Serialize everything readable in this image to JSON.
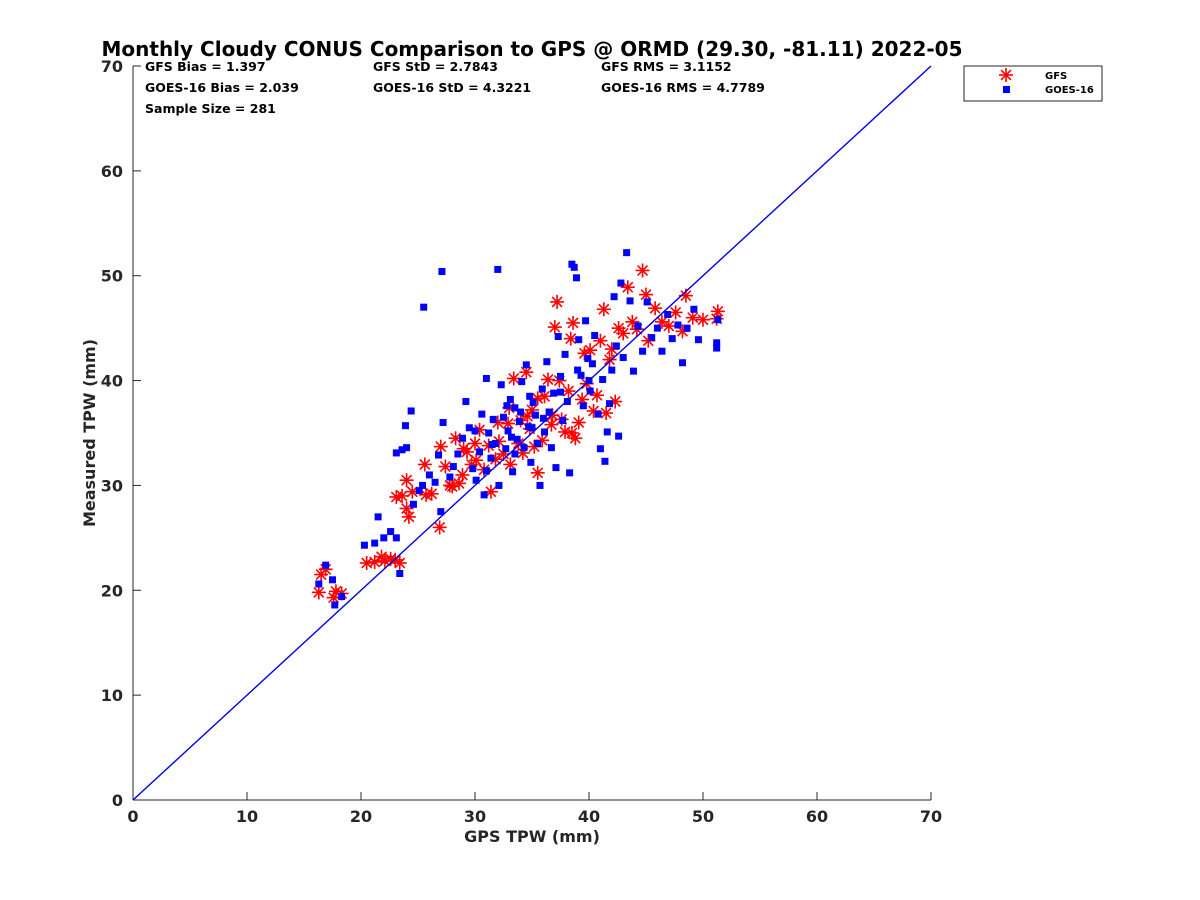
{
  "chart_data": {
    "type": "scatter",
    "title": "Monthly Cloudy CONUS Comparison to GPS @ ORMD (29.30, -81.11) 2022-05",
    "xlabel": "GPS TPW (mm)",
    "ylabel": "Measured TPW (mm)",
    "xlim": [
      0,
      70
    ],
    "ylim": [
      0,
      70
    ],
    "xticks": [
      "0",
      "10",
      "20",
      "30",
      "40",
      "50",
      "60",
      "70"
    ],
    "yticks": [
      "0",
      "10",
      "20",
      "30",
      "40",
      "50",
      "60",
      "70"
    ],
    "grid": false,
    "legend_position": "top-right",
    "stats": {
      "gfs_bias": "GFS Bias = 1.397",
      "goes_bias": "GOES-16 Bias = 2.039",
      "sample_size": "Sample Size = 281",
      "gfs_std": "GFS StD = 2.7843",
      "goes_std": "GOES-16 StD = 4.3221",
      "gfs_rms": "GFS RMS = 3.1152",
      "goes_rms": "GOES-16 RMS = 4.7789"
    },
    "reference_line": {
      "x": [
        0,
        70
      ],
      "y": [
        0,
        70
      ],
      "color": "#0000e6"
    },
    "series": [
      {
        "name": "GFS",
        "marker": "asterisk",
        "color": "#ff0000",
        "points": [
          [
            16.3,
            19.8
          ],
          [
            16.5,
            21.5
          ],
          [
            16.9,
            22.0
          ],
          [
            17.8,
            19.9
          ],
          [
            18.3,
            19.7
          ],
          [
            17.6,
            19.3
          ],
          [
            20.5,
            22.6
          ],
          [
            21.2,
            22.7
          ],
          [
            21.8,
            23.2
          ],
          [
            22.1,
            22.8
          ],
          [
            22.6,
            23.0
          ],
          [
            23.0,
            22.9
          ],
          [
            23.4,
            22.6
          ],
          [
            23.1,
            28.9
          ],
          [
            23.6,
            29.0
          ],
          [
            24.0,
            30.5
          ],
          [
            24.0,
            27.8
          ],
          [
            24.2,
            27.0
          ],
          [
            24.5,
            29.4
          ],
          [
            25.7,
            29.1
          ],
          [
            26.2,
            29.2
          ],
          [
            25.6,
            32.0
          ],
          [
            26.9,
            26.0
          ],
          [
            27.0,
            33.7
          ],
          [
            27.4,
            31.8
          ],
          [
            27.8,
            30.0
          ],
          [
            28.0,
            29.9
          ],
          [
            28.3,
            34.5
          ],
          [
            28.6,
            30.2
          ],
          [
            28.9,
            31.0
          ],
          [
            29.3,
            33.2
          ],
          [
            29.7,
            32.0
          ],
          [
            30.1,
            32.4
          ],
          [
            30.4,
            35.3
          ],
          [
            30.8,
            31.5
          ],
          [
            31.2,
            33.8
          ],
          [
            31.4,
            29.4
          ],
          [
            31.8,
            32.5
          ],
          [
            32.1,
            34.2
          ],
          [
            32.5,
            33.0
          ],
          [
            32.9,
            35.9
          ],
          [
            33.1,
            32.0
          ],
          [
            33.4,
            40.2
          ],
          [
            33.8,
            34.0
          ],
          [
            34.0,
            36.2
          ],
          [
            34.2,
            33.1
          ],
          [
            34.5,
            40.8
          ],
          [
            34.8,
            35.4
          ],
          [
            35.0,
            37.2
          ],
          [
            35.2,
            33.7
          ],
          [
            35.5,
            31.2
          ],
          [
            35.9,
            34.3
          ],
          [
            36.1,
            38.5
          ],
          [
            36.4,
            40.1
          ],
          [
            36.7,
            35.8
          ],
          [
            37.0,
            45.1
          ],
          [
            37.2,
            47.5
          ],
          [
            37.4,
            40.0
          ],
          [
            37.6,
            36.3
          ],
          [
            37.9,
            35.1
          ],
          [
            38.2,
            39.0
          ],
          [
            38.4,
            44.0
          ],
          [
            38.6,
            45.5
          ],
          [
            38.8,
            34.5
          ],
          [
            39.1,
            36.0
          ],
          [
            39.4,
            38.2
          ],
          [
            39.8,
            39.7
          ],
          [
            40.1,
            42.9
          ],
          [
            40.4,
            37.1
          ],
          [
            40.7,
            38.6
          ],
          [
            41.0,
            43.8
          ],
          [
            41.3,
            46.8
          ],
          [
            41.5,
            36.9
          ],
          [
            41.8,
            42.0
          ],
          [
            42.0,
            43.0
          ],
          [
            42.3,
            38.0
          ],
          [
            42.6,
            45.0
          ],
          [
            43.0,
            44.5
          ],
          [
            43.4,
            48.9
          ],
          [
            43.8,
            45.6
          ],
          [
            44.2,
            44.9
          ],
          [
            44.7,
            50.5
          ],
          [
            45.0,
            48.2
          ],
          [
            45.2,
            43.8
          ],
          [
            45.8,
            46.9
          ],
          [
            46.4,
            45.6
          ],
          [
            47.0,
            45.2
          ],
          [
            47.6,
            46.5
          ],
          [
            48.2,
            44.7
          ],
          [
            48.5,
            48.1
          ],
          [
            49.1,
            46.0
          ],
          [
            50.0,
            45.8
          ],
          [
            51.3,
            46.6
          ],
          [
            51.2,
            45.9
          ],
          [
            35.5,
            38.3
          ],
          [
            33.0,
            37.4
          ],
          [
            36.8,
            36.7
          ],
          [
            39.6,
            42.6
          ],
          [
            34.6,
            36.6
          ],
          [
            32.0,
            36.0
          ],
          [
            30.0,
            34.0
          ],
          [
            29.0,
            33.5
          ],
          [
            38.5,
            35.0
          ]
        ]
      },
      {
        "name": "GOES-16",
        "marker": "square",
        "color": "#0000ff",
        "points": [
          [
            16.3,
            20.6
          ],
          [
            16.9,
            22.4
          ],
          [
            17.5,
            21.0
          ],
          [
            17.7,
            18.6
          ],
          [
            18.3,
            19.4
          ],
          [
            20.3,
            24.3
          ],
          [
            21.2,
            24.5
          ],
          [
            21.5,
            27.0
          ],
          [
            22.0,
            25.0
          ],
          [
            22.6,
            25.6
          ],
          [
            23.1,
            25.0
          ],
          [
            23.1,
            33.1
          ],
          [
            23.4,
            21.6
          ],
          [
            23.6,
            33.4
          ],
          [
            23.9,
            35.7
          ],
          [
            24.0,
            33.6
          ],
          [
            24.4,
            37.1
          ],
          [
            24.6,
            28.2
          ],
          [
            25.1,
            29.5
          ],
          [
            25.4,
            30.0
          ],
          [
            25.5,
            47.0
          ],
          [
            26.0,
            31.0
          ],
          [
            26.5,
            30.3
          ],
          [
            26.8,
            32.9
          ],
          [
            27.1,
            50.4
          ],
          [
            27.2,
            36.0
          ],
          [
            27.0,
            27.5
          ],
          [
            27.8,
            30.8
          ],
          [
            28.1,
            31.8
          ],
          [
            28.5,
            33.0
          ],
          [
            28.9,
            34.5
          ],
          [
            29.2,
            38.0
          ],
          [
            29.5,
            35.5
          ],
          [
            29.8,
            31.6
          ],
          [
            30.1,
            30.5
          ],
          [
            30.4,
            33.2
          ],
          [
            30.6,
            36.8
          ],
          [
            30.8,
            29.1
          ],
          [
            31.0,
            40.2
          ],
          [
            31.2,
            35.0
          ],
          [
            31.4,
            32.6
          ],
          [
            31.6,
            36.3
          ],
          [
            31.8,
            34.0
          ],
          [
            32.0,
            50.6
          ],
          [
            32.1,
            30.0
          ],
          [
            32.3,
            39.6
          ],
          [
            32.5,
            36.5
          ],
          [
            32.7,
            33.5
          ],
          [
            32.9,
            35.2
          ],
          [
            33.1,
            38.2
          ],
          [
            33.3,
            31.3
          ],
          [
            33.5,
            37.4
          ],
          [
            33.7,
            34.4
          ],
          [
            33.9,
            36.1
          ],
          [
            34.1,
            39.9
          ],
          [
            34.3,
            33.6
          ],
          [
            34.5,
            41.5
          ],
          [
            34.7,
            35.6
          ],
          [
            34.9,
            32.2
          ],
          [
            35.1,
            37.9
          ],
          [
            35.3,
            36.7
          ],
          [
            35.5,
            34.0
          ],
          [
            35.7,
            30.0
          ],
          [
            35.9,
            39.2
          ],
          [
            36.1,
            35.1
          ],
          [
            36.3,
            41.8
          ],
          [
            36.5,
            37.0
          ],
          [
            36.7,
            33.6
          ],
          [
            36.9,
            38.8
          ],
          [
            37.1,
            31.7
          ],
          [
            37.3,
            44.2
          ],
          [
            37.5,
            40.4
          ],
          [
            37.7,
            36.2
          ],
          [
            37.9,
            42.5
          ],
          [
            38.1,
            38.0
          ],
          [
            38.3,
            31.2
          ],
          [
            38.5,
            51.1
          ],
          [
            38.7,
            50.8
          ],
          [
            38.9,
            49.8
          ],
          [
            39.1,
            43.9
          ],
          [
            39.3,
            40.5
          ],
          [
            39.5,
            37.6
          ],
          [
            39.7,
            45.7
          ],
          [
            39.9,
            42.1
          ],
          [
            40.1,
            39.0
          ],
          [
            40.3,
            41.6
          ],
          [
            40.5,
            44.3
          ],
          [
            40.8,
            36.8
          ],
          [
            41.0,
            33.5
          ],
          [
            41.2,
            40.1
          ],
          [
            41.4,
            32.3
          ],
          [
            41.6,
            35.1
          ],
          [
            41.8,
            37.8
          ],
          [
            42.0,
            41.0
          ],
          [
            42.2,
            48.0
          ],
          [
            42.4,
            43.3
          ],
          [
            42.6,
            34.7
          ],
          [
            42.8,
            49.3
          ],
          [
            43.0,
            42.2
          ],
          [
            43.3,
            52.2
          ],
          [
            43.6,
            47.6
          ],
          [
            43.9,
            40.9
          ],
          [
            44.3,
            45.2
          ],
          [
            44.7,
            42.8
          ],
          [
            45.1,
            47.5
          ],
          [
            45.5,
            44.1
          ],
          [
            46.0,
            45.0
          ],
          [
            46.4,
            42.8
          ],
          [
            46.9,
            46.3
          ],
          [
            47.3,
            44.0
          ],
          [
            47.8,
            45.3
          ],
          [
            48.2,
            41.7
          ],
          [
            48.6,
            45.0
          ],
          [
            49.2,
            46.8
          ],
          [
            49.6,
            43.9
          ],
          [
            51.2,
            43.6
          ],
          [
            51.2,
            43.1
          ],
          [
            51.3,
            45.8
          ],
          [
            30.0,
            35.2
          ],
          [
            32.8,
            37.6
          ],
          [
            34.0,
            37.0
          ],
          [
            35.0,
            35.5
          ],
          [
            33.5,
            33.0
          ],
          [
            36.0,
            36.4
          ],
          [
            31.5,
            33.9
          ],
          [
            34.8,
            38.5
          ],
          [
            33.2,
            34.6
          ],
          [
            37.5,
            38.9
          ],
          [
            39.0,
            41.0
          ],
          [
            40.0,
            40.0
          ],
          [
            31.0,
            31.4
          ]
        ]
      }
    ]
  }
}
